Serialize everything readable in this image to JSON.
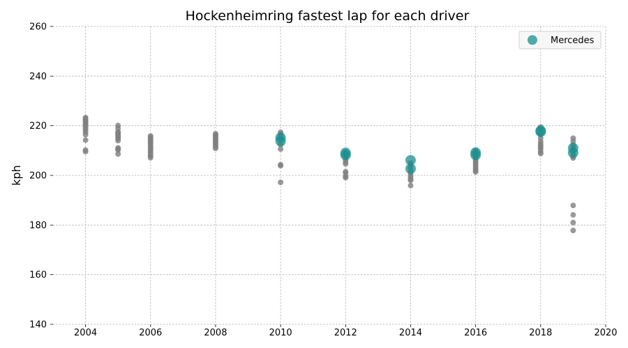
{
  "chart_data": {
    "type": "scatter",
    "title": "Hockenheimring fastest lap for each driver",
    "xlabel": "",
    "ylabel": "kph",
    "xlim": [
      2003,
      2020
    ],
    "ylim": [
      140,
      260
    ],
    "xticks": [
      2004,
      2006,
      2008,
      2010,
      2012,
      2014,
      2016,
      2018,
      2020
    ],
    "yticks": [
      140,
      160,
      180,
      200,
      220,
      240,
      260
    ],
    "grid": true,
    "legend": {
      "position": "top-right",
      "entries": [
        "Mercedes"
      ]
    },
    "colors": {
      "other": "#808080",
      "Mercedes": "#1a9090"
    },
    "series": [
      {
        "name": "",
        "points": [
          [
            2004,
            223.3
          ],
          [
            2004,
            222.8
          ],
          [
            2004,
            222.3
          ],
          [
            2004,
            221.8
          ],
          [
            2004,
            221.2
          ],
          [
            2004,
            220.6
          ],
          [
            2004,
            220.0
          ],
          [
            2004,
            219.2
          ],
          [
            2004,
            218.4
          ],
          [
            2004,
            217.5
          ],
          [
            2004,
            216.4
          ],
          [
            2004,
            214.2
          ],
          [
            2004,
            210.2
          ],
          [
            2004,
            209.6
          ],
          [
            2005,
            220.1
          ],
          [
            2005,
            219.0
          ],
          [
            2005,
            217.6
          ],
          [
            2005,
            217.1
          ],
          [
            2005,
            216.6
          ],
          [
            2005,
            216.0
          ],
          [
            2005,
            215.4
          ],
          [
            2005,
            214.8
          ],
          [
            2005,
            214.0
          ],
          [
            2005,
            211.1
          ],
          [
            2005,
            210.6
          ],
          [
            2005,
            210.2
          ],
          [
            2005,
            208.6
          ],
          [
            2006,
            215.9
          ],
          [
            2006,
            215.3
          ],
          [
            2006,
            214.8
          ],
          [
            2006,
            214.1
          ],
          [
            2006,
            213.5
          ],
          [
            2006,
            212.8
          ],
          [
            2006,
            212.0
          ],
          [
            2006,
            211.3
          ],
          [
            2006,
            210.6
          ],
          [
            2006,
            210.0
          ],
          [
            2006,
            209.2
          ],
          [
            2006,
            208.4
          ],
          [
            2006,
            207.8
          ],
          [
            2006,
            207.1
          ],
          [
            2008,
            216.8
          ],
          [
            2008,
            216.3
          ],
          [
            2008,
            215.8
          ],
          [
            2008,
            215.2
          ],
          [
            2008,
            214.6
          ],
          [
            2008,
            214.0
          ],
          [
            2008,
            213.4
          ],
          [
            2008,
            212.8
          ],
          [
            2008,
            212.2
          ],
          [
            2008,
            211.5
          ],
          [
            2008,
            210.9
          ],
          [
            2010,
            217.4
          ],
          [
            2010,
            216.7
          ],
          [
            2010,
            216.0
          ],
          [
            2010,
            215.2
          ],
          [
            2010,
            214.6
          ],
          [
            2010,
            212.4
          ],
          [
            2010,
            210.6
          ],
          [
            2010,
            204.3
          ],
          [
            2010,
            203.9
          ],
          [
            2010,
            197.2
          ],
          [
            2012,
            209.5
          ],
          [
            2012,
            208.6
          ],
          [
            2012,
            207.8
          ],
          [
            2012,
            207.0
          ],
          [
            2012,
            206.2
          ],
          [
            2012,
            205.4
          ],
          [
            2012,
            204.6
          ],
          [
            2012,
            201.5
          ],
          [
            2012,
            201.0
          ],
          [
            2012,
            199.6
          ],
          [
            2012,
            199.1
          ],
          [
            2014,
            205.0
          ],
          [
            2014,
            204.2
          ],
          [
            2014,
            203.4
          ],
          [
            2014,
            202.6
          ],
          [
            2014,
            201.8
          ],
          [
            2014,
            201.0
          ],
          [
            2014,
            200.2
          ],
          [
            2014,
            199.4
          ],
          [
            2014,
            198.5
          ],
          [
            2014,
            198.0
          ],
          [
            2014,
            195.9
          ],
          [
            2016,
            210.0
          ],
          [
            2016,
            209.2
          ],
          [
            2016,
            208.4
          ],
          [
            2016,
            207.6
          ],
          [
            2016,
            206.8
          ],
          [
            2016,
            206.0
          ],
          [
            2016,
            205.2
          ],
          [
            2016,
            204.4
          ],
          [
            2016,
            203.6
          ],
          [
            2016,
            202.8
          ],
          [
            2016,
            202.0
          ],
          [
            2016,
            201.4
          ],
          [
            2018,
            219.5
          ],
          [
            2018,
            218.6
          ],
          [
            2018,
            216.4
          ],
          [
            2018,
            215.0
          ],
          [
            2018,
            213.6
          ],
          [
            2018,
            212.6
          ],
          [
            2018,
            211.9
          ],
          [
            2018,
            211.2
          ],
          [
            2018,
            210.5
          ],
          [
            2018,
            209.4
          ],
          [
            2018,
            208.8
          ],
          [
            2019,
            215.0
          ],
          [
            2019,
            213.8
          ],
          [
            2019,
            212.4
          ],
          [
            2019,
            211.6
          ],
          [
            2019,
            210.8
          ],
          [
            2019,
            210.0
          ],
          [
            2019,
            209.2
          ],
          [
            2019,
            208.4
          ],
          [
            2019,
            207.6
          ],
          [
            2019,
            207.0
          ],
          [
            2019,
            187.9
          ],
          [
            2019,
            184.1
          ],
          [
            2019,
            181.0
          ],
          [
            2019,
            177.8
          ]
        ]
      },
      {
        "name": "Mercedes",
        "points": [
          [
            2010,
            215.2
          ],
          [
            2010,
            213.8
          ],
          [
            2012,
            209.1
          ],
          [
            2012,
            208.2
          ],
          [
            2014,
            206.1
          ],
          [
            2014,
            202.7
          ],
          [
            2016,
            209.2
          ],
          [
            2016,
            208.2
          ],
          [
            2018,
            218.0
          ],
          [
            2018,
            217.6
          ],
          [
            2019,
            211.0
          ],
          [
            2019,
            209.1
          ]
        ]
      }
    ]
  }
}
